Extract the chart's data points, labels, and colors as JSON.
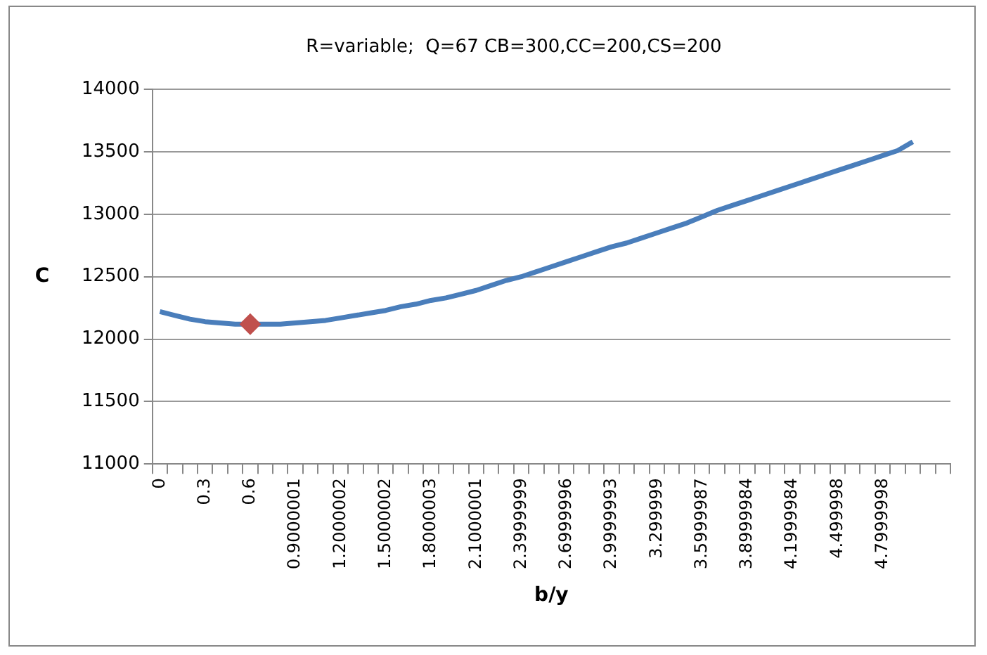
{
  "chart_data": {
    "type": "line",
    "title": "R=variable;  Q=67 CB=300,CC=200,CS=200",
    "xlabel": "b/y",
    "ylabel": "C",
    "categories": [
      "0",
      null,
      null,
      "0.3",
      null,
      null,
      "0.6",
      null,
      null,
      "0.9000001",
      null,
      null,
      "1.2000002",
      null,
      null,
      "1.5000002",
      null,
      null,
      "1.8000003",
      null,
      null,
      "2.1000001",
      null,
      null,
      "2.3999999",
      null,
      null,
      "2.6999996",
      null,
      null,
      "2.9999993",
      null,
      null,
      "3.299999",
      null,
      null,
      "3.5999987",
      null,
      null,
      "3.8999984",
      null,
      null,
      "4.1999984",
      null,
      null,
      "4.499998",
      null,
      null,
      "4.7999998",
      null,
      null,
      null,
      null
    ],
    "series": [
      {
        "color": "#4a7ebb",
        "marker": "none",
        "values": [
          12220,
          12190,
          12160,
          12140,
          12130,
          12120,
          12120,
          12120,
          12120,
          12130,
          12140,
          12150,
          12170,
          12190,
          12210,
          12230,
          12260,
          12280,
          12310,
          12330,
          12360,
          12390,
          12430,
          12470,
          12500,
          12540,
          12580,
          12620,
          12660,
          12700,
          12740,
          12770,
          12810,
          12850,
          12890,
          12930,
          12980,
          13030,
          13070,
          13110,
          13150,
          13190,
          13230,
          13270,
          13310,
          13350,
          13390,
          13430,
          13470,
          13510,
          13580,
          null,
          null
        ]
      },
      {
        "type": "scatter",
        "color": "#c0504d",
        "marker": "diamond",
        "values": [
          null,
          null,
          null,
          null,
          null,
          null,
          12120,
          null,
          null,
          null,
          null,
          null,
          null,
          null,
          null,
          null,
          null,
          null,
          null,
          null,
          null,
          null,
          null,
          null,
          null,
          null,
          null,
          null,
          null,
          null,
          null,
          null,
          null,
          null,
          null,
          null,
          null,
          null,
          null,
          null,
          null,
          null,
          null,
          null,
          null,
          null,
          null,
          null,
          null,
          null,
          null,
          null,
          null
        ]
      }
    ],
    "ylim": [
      11000,
      14000
    ],
    "yticks": [
      11000,
      11500,
      12000,
      12500,
      13000,
      13500,
      14000
    ],
    "grid": "y",
    "legend": false
  }
}
